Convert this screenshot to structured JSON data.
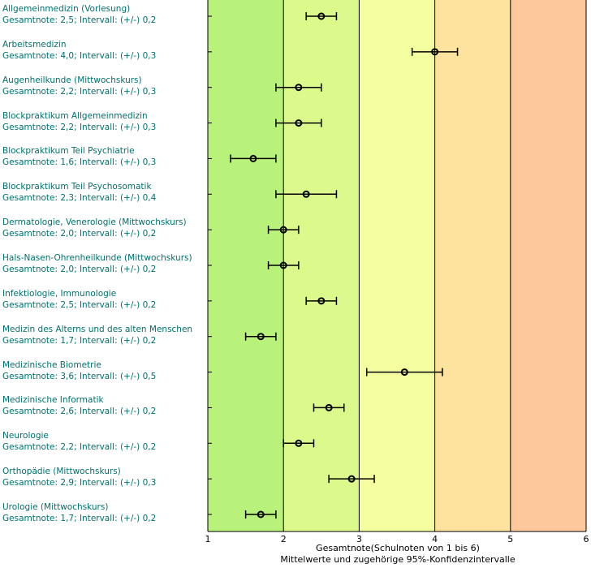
{
  "chart_data": {
    "type": "errorbar",
    "xlim": [
      1,
      6
    ],
    "xticks": [
      "1",
      "2",
      "3",
      "4",
      "5",
      "6"
    ],
    "xlabel": "Gesamtnote(Schulnoten von 1 bis 6)",
    "xlabel2": "Mittelwerte und zugehörige 95%-Konfidenzintervalle",
    "bands": [
      {
        "from": 1,
        "to": 2,
        "color": "#b9f27a"
      },
      {
        "from": 2,
        "to": 3,
        "color": "#dcfa8c"
      },
      {
        "from": 3,
        "to": 4,
        "color": "#f4fea0"
      },
      {
        "from": 4,
        "to": 5,
        "color": "#fde39e"
      },
      {
        "from": 5,
        "to": 6,
        "color": "#fdc89b"
      }
    ],
    "items": [
      {
        "name": "Allgemeinmedizin (Vorlesung)",
        "detail": "Gesamtnote: 2,5;  Intervall: (+/-) 0,2",
        "mean": 2.5,
        "ci": 0.2
      },
      {
        "name": "Arbeitsmedizin",
        "detail": "Gesamtnote: 4,0;  Intervall: (+/-) 0,3",
        "mean": 4.0,
        "ci": 0.3
      },
      {
        "name": "Augenheilkunde (Mittwochskurs)",
        "detail": "Gesamtnote: 2,2;  Intervall: (+/-) 0,3",
        "mean": 2.2,
        "ci": 0.3
      },
      {
        "name": "Blockpraktikum Allgemeinmedizin",
        "detail": "Gesamtnote: 2,2;  Intervall: (+/-) 0,3",
        "mean": 2.2,
        "ci": 0.3
      },
      {
        "name": "Blockpraktikum Teil Psychiatrie",
        "detail": "Gesamtnote: 1,6;  Intervall: (+/-) 0,3",
        "mean": 1.6,
        "ci": 0.3
      },
      {
        "name": "Blockpraktikum Teil Psychosomatik",
        "detail": "Gesamtnote: 2,3;  Intervall: (+/-) 0,4",
        "mean": 2.3,
        "ci": 0.4
      },
      {
        "name": "Dermatologie, Venerologie (Mittwochskurs)",
        "detail": "Gesamtnote: 2,0;  Intervall: (+/-) 0,2",
        "mean": 2.0,
        "ci": 0.2
      },
      {
        "name": "Hals-Nasen-Ohrenheilkunde (Mittwochskurs)",
        "detail": "Gesamtnote: 2,0;  Intervall: (+/-) 0,2",
        "mean": 2.0,
        "ci": 0.2
      },
      {
        "name": "Infektiologie, Immunologie",
        "detail": "Gesamtnote: 2,5;  Intervall: (+/-) 0,2",
        "mean": 2.5,
        "ci": 0.2
      },
      {
        "name": "Medizin des Alterns und des alten Menschen",
        "detail": "Gesamtnote: 1,7;  Intervall: (+/-) 0,2",
        "mean": 1.7,
        "ci": 0.2
      },
      {
        "name": "Medizinische Biometrie",
        "detail": "Gesamtnote: 3,6;  Intervall: (+/-) 0,5",
        "mean": 3.6,
        "ci": 0.5
      },
      {
        "name": "Medizinische Informatik",
        "detail": "Gesamtnote: 2,6;  Intervall: (+/-) 0,2",
        "mean": 2.6,
        "ci": 0.2
      },
      {
        "name": "Neurologie",
        "detail": "Gesamtnote: 2,2;  Intervall: (+/-) 0,2",
        "mean": 2.2,
        "ci": 0.2
      },
      {
        "name": "Orthopädie (Mittwochskurs)",
        "detail": "Gesamtnote: 2,9;  Intervall: (+/-) 0,3",
        "mean": 2.9,
        "ci": 0.3
      },
      {
        "name": "Urologie (Mittwochskurs)",
        "detail": "Gesamtnote: 1,7;  Intervall: (+/-) 0,2",
        "mean": 1.7,
        "ci": 0.2
      }
    ]
  }
}
